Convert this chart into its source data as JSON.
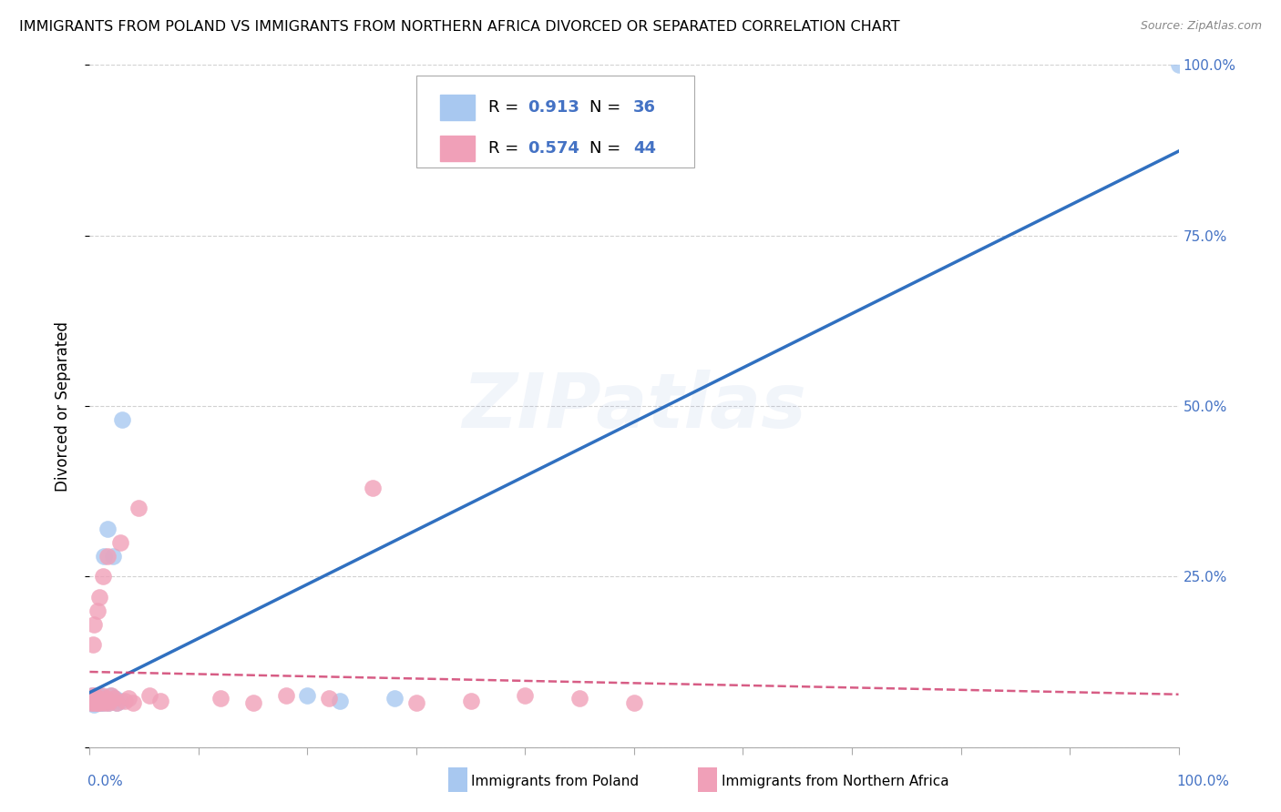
{
  "title": "IMMIGRANTS FROM POLAND VS IMMIGRANTS FROM NORTHERN AFRICA DIVORCED OR SEPARATED CORRELATION CHART",
  "source": "Source: ZipAtlas.com",
  "ylabel": "Divorced or Separated",
  "poland_color": "#A8C8F0",
  "n_africa_color": "#F0A0B8",
  "poland_R": 0.913,
  "poland_N": 36,
  "n_africa_R": 0.574,
  "n_africa_N": 44,
  "poland_line_color": "#3070C0",
  "n_africa_line_color": "#D04070",
  "poland_scatter_x": [
    0.001,
    0.002,
    0.002,
    0.003,
    0.003,
    0.003,
    0.004,
    0.004,
    0.004,
    0.005,
    0.005,
    0.006,
    0.006,
    0.007,
    0.007,
    0.008,
    0.008,
    0.009,
    0.01,
    0.01,
    0.011,
    0.012,
    0.013,
    0.014,
    0.016,
    0.017,
    0.019,
    0.021,
    0.023,
    0.025,
    0.028,
    0.03,
    0.2,
    0.23,
    0.28,
    1.0
  ],
  "poland_scatter_y": [
    0.065,
    0.07,
    0.075,
    0.065,
    0.068,
    0.072,
    0.062,
    0.067,
    0.071,
    0.065,
    0.073,
    0.068,
    0.072,
    0.065,
    0.074,
    0.065,
    0.068,
    0.075,
    0.065,
    0.072,
    0.068,
    0.065,
    0.28,
    0.072,
    0.32,
    0.065,
    0.075,
    0.28,
    0.072,
    0.065,
    0.068,
    0.48,
    0.075,
    0.068,
    0.072,
    1.0
  ],
  "n_africa_scatter_x": [
    0.001,
    0.002,
    0.002,
    0.003,
    0.003,
    0.004,
    0.004,
    0.005,
    0.005,
    0.006,
    0.006,
    0.007,
    0.007,
    0.008,
    0.009,
    0.01,
    0.011,
    0.012,
    0.013,
    0.014,
    0.015,
    0.016,
    0.017,
    0.018,
    0.02,
    0.022,
    0.025,
    0.028,
    0.032,
    0.036,
    0.04,
    0.045,
    0.055,
    0.065,
    0.12,
    0.15,
    0.18,
    0.22,
    0.26,
    0.3,
    0.35,
    0.4,
    0.45,
    0.5
  ],
  "n_africa_scatter_y": [
    0.065,
    0.075,
    0.068,
    0.15,
    0.072,
    0.065,
    0.18,
    0.07,
    0.075,
    0.065,
    0.072,
    0.2,
    0.065,
    0.068,
    0.22,
    0.065,
    0.075,
    0.25,
    0.068,
    0.065,
    0.072,
    0.28,
    0.065,
    0.068,
    0.075,
    0.072,
    0.065,
    0.3,
    0.068,
    0.072,
    0.065,
    0.35,
    0.075,
    0.068,
    0.072,
    0.065,
    0.075,
    0.072,
    0.38,
    0.065,
    0.068,
    0.075,
    0.072,
    0.065
  ],
  "grid_color": "#CCCCCC",
  "tick_color": "#4472C4",
  "right_ytick_labels": [
    "100.0%",
    "75.0%",
    "50.0%",
    "25.0%",
    ""
  ],
  "right_ytick_vals": [
    1.0,
    0.75,
    0.5,
    0.25,
    0.0
  ]
}
